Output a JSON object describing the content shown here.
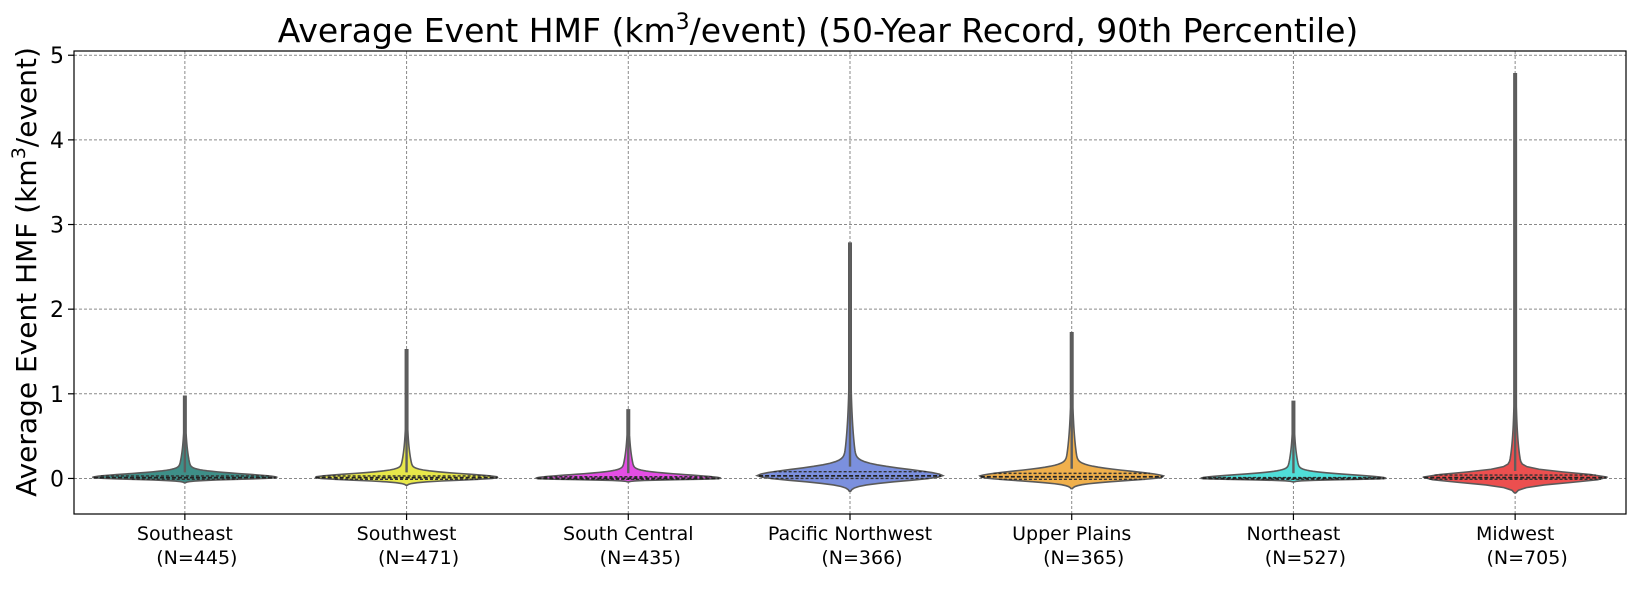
{
  "chart_data": {
    "type": "violin",
    "title_parts": [
      "Average Event HMF (km",
      "3",
      "/event) (50-Year Record, 90th Percentile)"
    ],
    "ylabel_parts": [
      "Average Event HMF (km",
      "3",
      "/event)"
    ],
    "ylim": [
      -0.42,
      5.05
    ],
    "yticks": [
      0,
      1,
      2,
      3,
      4,
      5
    ],
    "ytick_labels": [
      "0",
      "1",
      "2",
      "3",
      "4",
      "5"
    ],
    "grid": true,
    "categories": [
      {
        "name": "Southeast",
        "n_label": "(N=445)",
        "color": "#3e8f88",
        "max": 0.97,
        "min": -0.05,
        "q1": -0.01,
        "median": 0.01,
        "q3": 0.03,
        "halfwidth": 0.5
      },
      {
        "name": "Southwest",
        "n_label": "(N=471)",
        "color": "#e8e84a",
        "max": 1.52,
        "min": -0.08,
        "q1": -0.01,
        "median": 0.01,
        "q3": 0.03,
        "halfwidth": 0.5
      },
      {
        "name": "South Central",
        "n_label": "(N=435)",
        "color": "#e44ee4",
        "max": 0.81,
        "min": -0.04,
        "q1": -0.01,
        "median": 0.0,
        "q3": 0.02,
        "halfwidth": 0.5
      },
      {
        "name": "Pacific Northwest",
        "n_label": "(N=366)",
        "color": "#7b90de",
        "max": 2.78,
        "min": -0.15,
        "q1": 0.0,
        "median": 0.03,
        "q3": 0.08,
        "halfwidth": 0.5
      },
      {
        "name": "Upper Plains",
        "n_label": "(N=365)",
        "color": "#f0b04c",
        "max": 1.72,
        "min": -0.12,
        "q1": -0.01,
        "median": 0.02,
        "q3": 0.06,
        "halfwidth": 0.5
      },
      {
        "name": "Northeast",
        "n_label": "(N=527)",
        "color": "#4fded8",
        "max": 0.91,
        "min": -0.04,
        "q1": -0.01,
        "median": 0.0,
        "q3": 0.01,
        "halfwidth": 0.5
      },
      {
        "name": "Midwest",
        "n_label": "(N=705)",
        "color": "#ec4f4f",
        "max": 4.78,
        "min": -0.17,
        "q1": -0.01,
        "median": 0.01,
        "q3": 0.04,
        "halfwidth": 0.5
      }
    ]
  }
}
